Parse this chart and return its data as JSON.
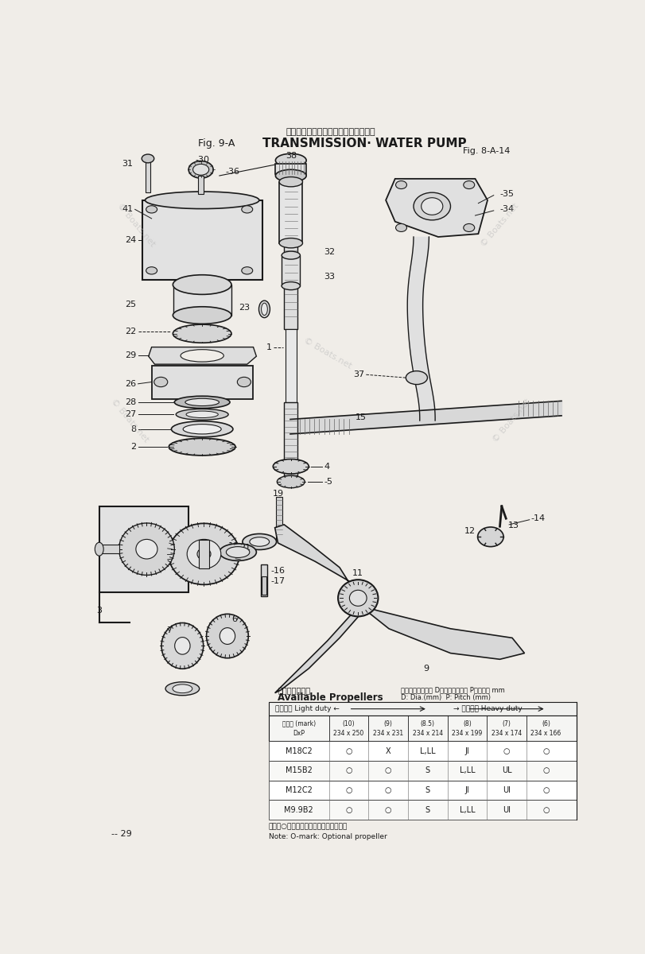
{
  "title_japanese": "トランスミッション・ウォータポンプ",
  "title_english": "TRANSMISSION· WATER PUMP",
  "fig_label": "Fig. 9-A",
  "fig_ref": "Fig. 8-A-14",
  "page_number": "-- 29",
  "background_color": "#f0ede8",
  "watermark_color": "#c8c8c8",
  "table_rows": [
    [
      "M18C2",
      "○",
      "X",
      "L,LL",
      "JI",
      "○",
      "○"
    ],
    [
      "M15B2",
      "○",
      "○",
      "S",
      "L,LL",
      "UL",
      "○"
    ],
    [
      "M12C2",
      "○",
      "○",
      "S",
      "JI",
      "UI",
      "○"
    ],
    [
      "M9.9B2",
      "○",
      "○",
      "S",
      "L,LL",
      "UI",
      "○"
    ]
  ],
  "note_japanese": "（注）○印はオプションプロペラです。",
  "note_english": "Note: O-mark: Optional propeller",
  "propeller_label_english": "Available Propellers",
  "propeller_note_line1": "注：プロペラ寸法 D：プロペラ直径 P：ピッチ mm",
  "propeller_note_line2": "D: Dia.(mm)  P: Pitch (mm)",
  "table_hdr2": [
    "サイズ (mark)\nDxP",
    "(10)\n234 x 250",
    "(9)\n234 x 231",
    "(8.5)\n234 x 214",
    "(8)\n234 x 199",
    "(7)\n234 x 174",
    "(6)\n234 x 166"
  ]
}
